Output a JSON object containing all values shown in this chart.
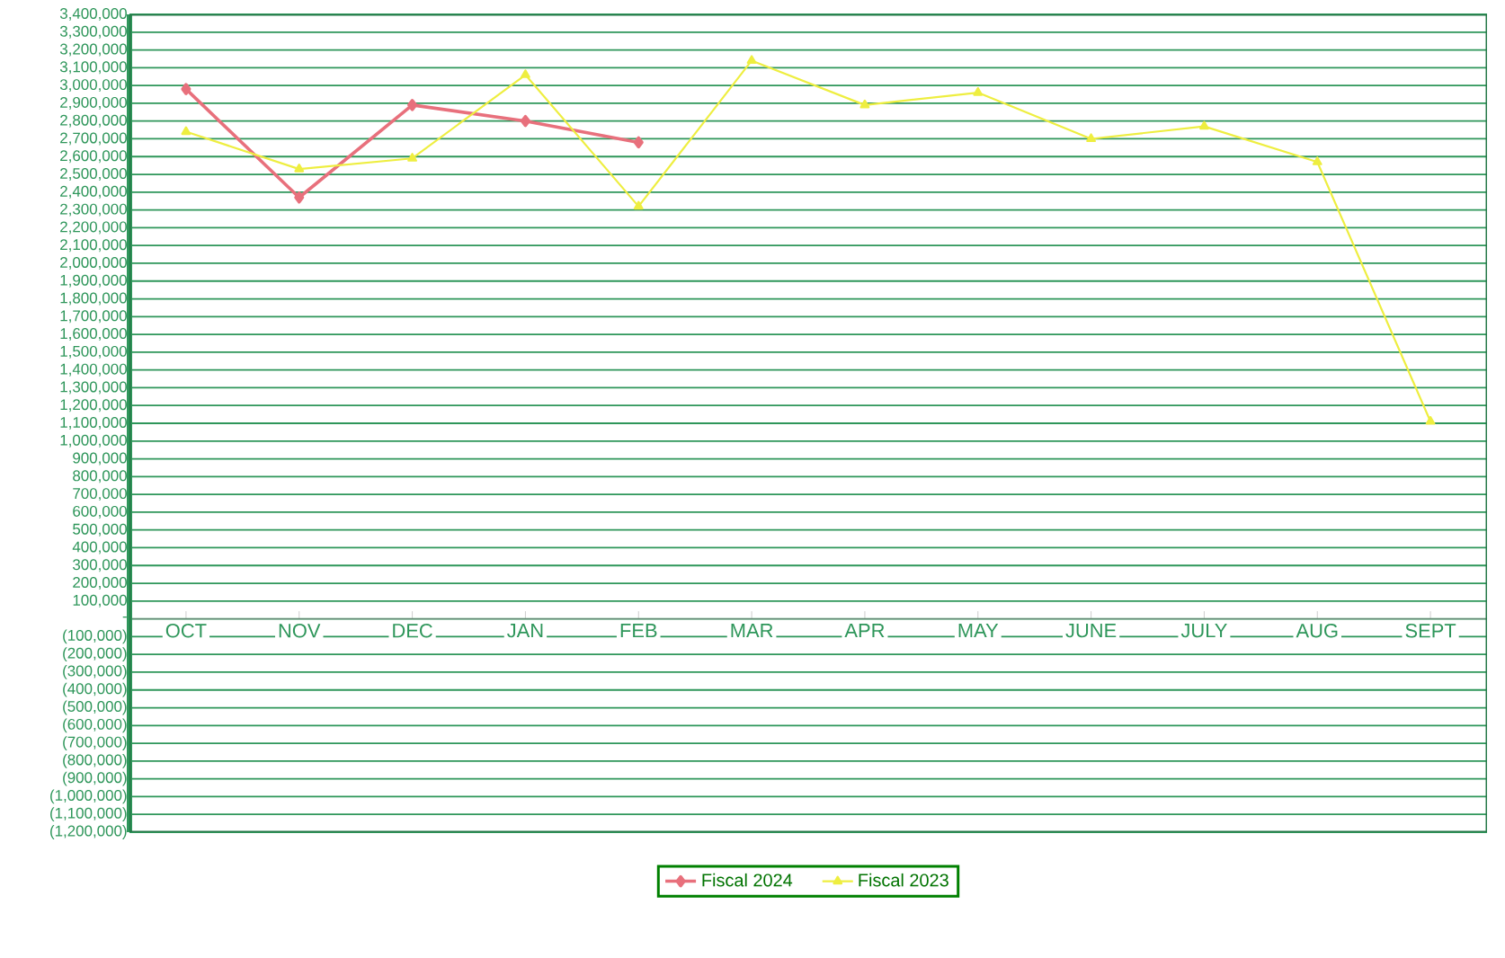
{
  "chart_data": {
    "type": "line",
    "categories": [
      "OCT",
      "NOV",
      "DEC",
      "JAN",
      "FEB",
      "MAR",
      "APR",
      "MAY",
      "JUNE",
      "JULY",
      "AUG",
      "SEPT"
    ],
    "series": [
      {
        "name": "Fiscal 2024",
        "color": "#e8707c",
        "marker": "diamond",
        "values": [
          2980000,
          2370000,
          2890000,
          2800000,
          2680000,
          null,
          null,
          null,
          null,
          null,
          null,
          null
        ]
      },
      {
        "name": "Fiscal 2023",
        "color": "#eeee40",
        "marker": "triangle",
        "values": [
          2740000,
          2530000,
          2590000,
          3060000,
          2320000,
          3140000,
          2890000,
          2960000,
          2700000,
          2770000,
          2570000,
          1110000
        ]
      }
    ],
    "ylim": [
      -1200000,
      3400000
    ],
    "yticks": [
      {
        "value": -1200000,
        "label": "(1,200,000)"
      },
      {
        "value": -1100000,
        "label": "(1,100,000)"
      },
      {
        "value": -1000000,
        "label": "(1,000,000)"
      },
      {
        "value": -900000,
        "label": "(900,000)"
      },
      {
        "value": -800000,
        "label": "(800,000)"
      },
      {
        "value": -700000,
        "label": "(700,000)"
      },
      {
        "value": -600000,
        "label": "(600,000)"
      },
      {
        "value": -500000,
        "label": "(500,000)"
      },
      {
        "value": -400000,
        "label": "(400,000)"
      },
      {
        "value": -300000,
        "label": "(300,000)"
      },
      {
        "value": -200000,
        "label": "(200,000)"
      },
      {
        "value": -100000,
        "label": "(100,000)"
      },
      {
        "value": 0,
        "label": "-"
      },
      {
        "value": 100000,
        "label": "100,000"
      },
      {
        "value": 200000,
        "label": "200,000"
      },
      {
        "value": 300000,
        "label": "300,000"
      },
      {
        "value": 400000,
        "label": "400,000"
      },
      {
        "value": 500000,
        "label": "500,000"
      },
      {
        "value": 600000,
        "label": "600,000"
      },
      {
        "value": 700000,
        "label": "700,000"
      },
      {
        "value": 800000,
        "label": "800,000"
      },
      {
        "value": 900000,
        "label": "900,000"
      },
      {
        "value": 1000000,
        "label": "1,000,000"
      },
      {
        "value": 1100000,
        "label": "1,100,000"
      },
      {
        "value": 1200000,
        "label": "1,200,000"
      },
      {
        "value": 1300000,
        "label": "1,300,000"
      },
      {
        "value": 1400000,
        "label": "1,400,000"
      },
      {
        "value": 1500000,
        "label": "1,500,000"
      },
      {
        "value": 1600000,
        "label": "1,600,000"
      },
      {
        "value": 1700000,
        "label": "1,700,000"
      },
      {
        "value": 1800000,
        "label": "1,800,000"
      },
      {
        "value": 1900000,
        "label": "1,900,000"
      },
      {
        "value": 2000000,
        "label": "2,000,000"
      },
      {
        "value": 2100000,
        "label": "2,100,000"
      },
      {
        "value": 2200000,
        "label": "2,200,000"
      },
      {
        "value": 2300000,
        "label": "2,300,000"
      },
      {
        "value": 2400000,
        "label": "2,400,000"
      },
      {
        "value": 2500000,
        "label": "2,500,000"
      },
      {
        "value": 2600000,
        "label": "2,600,000"
      },
      {
        "value": 2700000,
        "label": "2,700,000"
      },
      {
        "value": 2800000,
        "label": "2,800,000"
      },
      {
        "value": 2900000,
        "label": "2,900,000"
      },
      {
        "value": 3000000,
        "label": "3,000,000"
      },
      {
        "value": 3100000,
        "label": "3,100,000"
      },
      {
        "value": 3200000,
        "label": "3,200,000"
      },
      {
        "value": 3300000,
        "label": "3,300,000"
      },
      {
        "value": 3400000,
        "label": "3,400,000"
      }
    ],
    "grid": "y",
    "legend": "bottom"
  }
}
